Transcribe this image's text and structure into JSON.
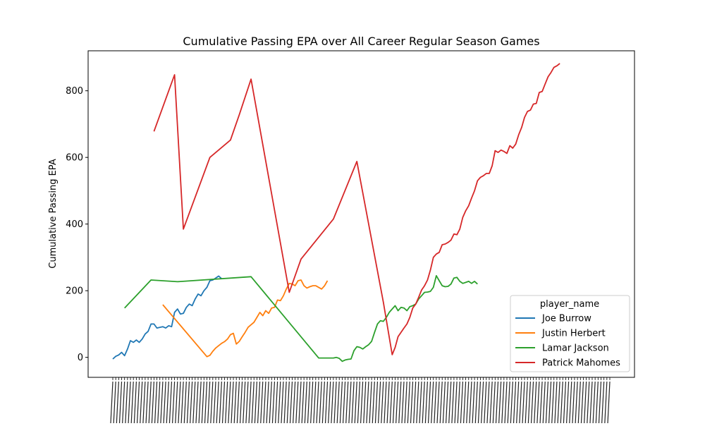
{
  "chart_data": {
    "type": "line",
    "title": "Cumulative Passing EPA over All Career Regular Season Games",
    "xlabel": "",
    "ylabel": "Cumulative Passing EPA",
    "ylim": [
      -60,
      920
    ],
    "x_tick_count": 170,
    "y_ticks": [
      0,
      200,
      400,
      600,
      800
    ],
    "grid": false,
    "legend": {
      "title": "player_name",
      "placement": "bottom-right"
    },
    "series": [
      {
        "name": "Joe Burrow",
        "color": "#1f77b4",
        "points": [
          [
            0,
            -5
          ],
          [
            1,
            3
          ],
          [
            2,
            7
          ],
          [
            3,
            15
          ],
          [
            4,
            5
          ],
          [
            5,
            25
          ],
          [
            6,
            50
          ],
          [
            7,
            45
          ],
          [
            8,
            52
          ],
          [
            9,
            45
          ],
          [
            10,
            55
          ],
          [
            11,
            70
          ],
          [
            12,
            78
          ],
          [
            13,
            100
          ],
          [
            14,
            100
          ],
          [
            15,
            88
          ],
          [
            16,
            90
          ],
          [
            17,
            92
          ],
          [
            18,
            88
          ],
          [
            19,
            95
          ],
          [
            20,
            92
          ],
          [
            21,
            135
          ],
          [
            22,
            145
          ],
          [
            23,
            130
          ],
          [
            24,
            132
          ],
          [
            25,
            150
          ],
          [
            26,
            160
          ],
          [
            27,
            155
          ],
          [
            28,
            175
          ],
          [
            29,
            190
          ],
          [
            30,
            185
          ],
          [
            31,
            200
          ],
          [
            32,
            210
          ],
          [
            33,
            230
          ],
          [
            34,
            232
          ],
          [
            35,
            238
          ],
          [
            36,
            244
          ],
          [
            37,
            236
          ]
        ]
      },
      {
        "name": "Justin Herbert",
        "color": "#ff7f0e",
        "points": [
          [
            17,
            158
          ],
          [
            32,
            2
          ],
          [
            33,
            6
          ],
          [
            34,
            18
          ],
          [
            35,
            28
          ],
          [
            36,
            35
          ],
          [
            37,
            42
          ],
          [
            38,
            47
          ],
          [
            39,
            55
          ],
          [
            40,
            68
          ],
          [
            41,
            72
          ],
          [
            42,
            40
          ],
          [
            43,
            48
          ],
          [
            44,
            62
          ],
          [
            45,
            75
          ],
          [
            46,
            90
          ],
          [
            47,
            98
          ],
          [
            48,
            105
          ],
          [
            49,
            120
          ],
          [
            50,
            135
          ],
          [
            51,
            125
          ],
          [
            52,
            140
          ],
          [
            53,
            132
          ],
          [
            54,
            148
          ],
          [
            55,
            150
          ],
          [
            56,
            172
          ],
          [
            57,
            170
          ],
          [
            58,
            185
          ],
          [
            59,
            205
          ],
          [
            60,
            222
          ],
          [
            61,
            220
          ],
          [
            62,
            215
          ],
          [
            63,
            230
          ],
          [
            64,
            232
          ],
          [
            65,
            215
          ],
          [
            66,
            208
          ],
          [
            67,
            212
          ],
          [
            68,
            215
          ],
          [
            69,
            215
          ],
          [
            70,
            210
          ],
          [
            71,
            205
          ],
          [
            72,
            215
          ],
          [
            73,
            230
          ]
        ]
      },
      {
        "name": "Lamar Jackson",
        "color": "#2ca02c",
        "points": [
          [
            4,
            148
          ],
          [
            13,
            232
          ],
          [
            22,
            227
          ],
          [
            47,
            242
          ],
          [
            70,
            -2
          ],
          [
            74,
            -2
          ],
          [
            75,
            -2
          ],
          [
            76,
            0
          ],
          [
            77,
            -3
          ],
          [
            78,
            -12
          ],
          [
            79,
            -8
          ],
          [
            80,
            -6
          ],
          [
            81,
            -5
          ],
          [
            82,
            20
          ],
          [
            83,
            32
          ],
          [
            84,
            30
          ],
          [
            85,
            25
          ],
          [
            86,
            32
          ],
          [
            87,
            38
          ],
          [
            88,
            48
          ],
          [
            89,
            75
          ],
          [
            90,
            100
          ],
          [
            91,
            110
          ],
          [
            92,
            108
          ],
          [
            93,
            120
          ],
          [
            94,
            135
          ],
          [
            95,
            145
          ],
          [
            96,
            155
          ],
          [
            97,
            140
          ],
          [
            98,
            150
          ],
          [
            99,
            148
          ],
          [
            100,
            140
          ],
          [
            101,
            152
          ],
          [
            102,
            155
          ],
          [
            103,
            160
          ],
          [
            104,
            175
          ],
          [
            105,
            185
          ],
          [
            106,
            195
          ],
          [
            107,
            196
          ],
          [
            108,
            198
          ],
          [
            109,
            210
          ],
          [
            110,
            245
          ],
          [
            111,
            230
          ],
          [
            112,
            215
          ],
          [
            113,
            212
          ],
          [
            114,
            213
          ],
          [
            115,
            220
          ],
          [
            116,
            238
          ],
          [
            117,
            240
          ],
          [
            118,
            228
          ],
          [
            119,
            222
          ],
          [
            120,
            225
          ],
          [
            121,
            228
          ],
          [
            122,
            222
          ],
          [
            123,
            228
          ],
          [
            124,
            220
          ]
        ]
      },
      {
        "name": "Patrick Mahomes",
        "color": "#d62728",
        "points": [
          [
            14,
            678
          ],
          [
            21,
            848
          ],
          [
            24,
            385
          ],
          [
            33,
            600
          ],
          [
            40,
            652
          ],
          [
            43,
            728
          ],
          [
            47,
            835
          ],
          [
            60,
            195
          ],
          [
            64,
            295
          ],
          [
            75,
            415
          ],
          [
            83,
            588
          ],
          [
            92,
            165
          ],
          [
            95,
            8
          ],
          [
            96,
            30
          ],
          [
            97,
            62
          ],
          [
            98,
            75
          ],
          [
            99,
            88
          ],
          [
            100,
            100
          ],
          [
            101,
            120
          ],
          [
            102,
            148
          ],
          [
            103,
            160
          ],
          [
            104,
            180
          ],
          [
            105,
            202
          ],
          [
            106,
            215
          ],
          [
            107,
            232
          ],
          [
            108,
            262
          ],
          [
            109,
            300
          ],
          [
            110,
            310
          ],
          [
            111,
            315
          ],
          [
            112,
            338
          ],
          [
            113,
            340
          ],
          [
            114,
            345
          ],
          [
            115,
            352
          ],
          [
            116,
            370
          ],
          [
            117,
            368
          ],
          [
            118,
            385
          ],
          [
            119,
            420
          ],
          [
            120,
            440
          ],
          [
            121,
            455
          ],
          [
            122,
            478
          ],
          [
            123,
            500
          ],
          [
            124,
            530
          ],
          [
            125,
            540
          ],
          [
            126,
            545
          ],
          [
            127,
            552
          ],
          [
            128,
            552
          ],
          [
            129,
            575
          ],
          [
            130,
            620
          ],
          [
            131,
            615
          ],
          [
            132,
            622
          ],
          [
            133,
            618
          ],
          [
            134,
            612
          ],
          [
            135,
            635
          ],
          [
            136,
            628
          ],
          [
            137,
            640
          ],
          [
            138,
            668
          ],
          [
            139,
            690
          ],
          [
            140,
            720
          ],
          [
            141,
            738
          ],
          [
            142,
            742
          ],
          [
            143,
            760
          ],
          [
            144,
            762
          ],
          [
            145,
            795
          ],
          [
            146,
            798
          ],
          [
            147,
            820
          ],
          [
            148,
            842
          ],
          [
            149,
            855
          ],
          [
            150,
            870
          ],
          [
            151,
            875
          ],
          [
            152,
            882
          ]
        ]
      }
    ]
  }
}
